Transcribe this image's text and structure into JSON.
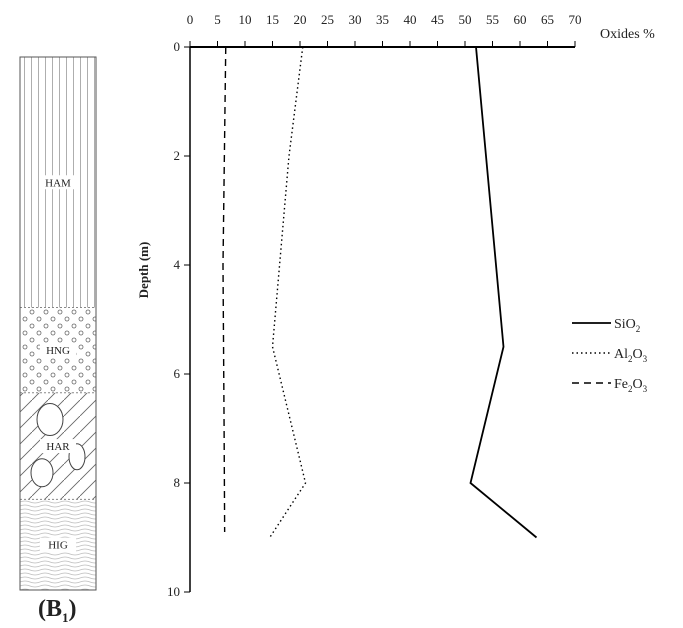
{
  "figure": {
    "panel_label": "(B",
    "panel_label_sub": "1",
    "panel_label_close": ")"
  },
  "column": {
    "layers": [
      {
        "code": "HAM",
        "top_m": 0,
        "bottom_m": 4.7,
        "pattern": "vertical-lines"
      },
      {
        "code": "HNG",
        "top_m": 4.7,
        "bottom_m": 6.3,
        "pattern": "circles"
      },
      {
        "code": "HAR",
        "top_m": 6.3,
        "bottom_m": 8.3,
        "pattern": "diagonal-lines-with-blocks"
      },
      {
        "code": "HIG",
        "top_m": 8.3,
        "bottom_m": 10,
        "pattern": "wavy-lines"
      }
    ]
  },
  "chart_data": {
    "type": "line",
    "xlabel": "Oxides %",
    "ylabel": "Depth (m)",
    "xlim": [
      0,
      70
    ],
    "ylim": [
      0,
      10
    ],
    "y_inverted": true,
    "xticks": [
      0,
      5,
      10,
      15,
      20,
      25,
      30,
      35,
      40,
      45,
      50,
      55,
      60,
      65,
      70
    ],
    "yticks": [
      0,
      2,
      4,
      6,
      8,
      10
    ],
    "grid": false,
    "legend_position": "right",
    "series": [
      {
        "name": "SiO",
        "name_sub": "2",
        "line_style": "solid",
        "color": "#000000",
        "x": [
          52,
          57,
          51,
          63
        ],
        "y": [
          0,
          5.5,
          8,
          9
        ]
      },
      {
        "name": "Al",
        "name_sub": "2",
        "name_mid": "O",
        "name_sub2": "3",
        "line_style": "dotted",
        "color": "#000000",
        "x": [
          20.5,
          18,
          15,
          21,
          14.5
        ],
        "y": [
          0,
          2,
          5.5,
          8,
          9
        ]
      },
      {
        "name": "Fe",
        "name_sub": "2",
        "name_mid": "O",
        "name_sub2": "3",
        "line_style": "dashed",
        "color": "#000000",
        "x": [
          6.5,
          6,
          6.2,
          6.3
        ],
        "y": [
          0,
          4,
          7,
          8.9
        ]
      }
    ]
  }
}
